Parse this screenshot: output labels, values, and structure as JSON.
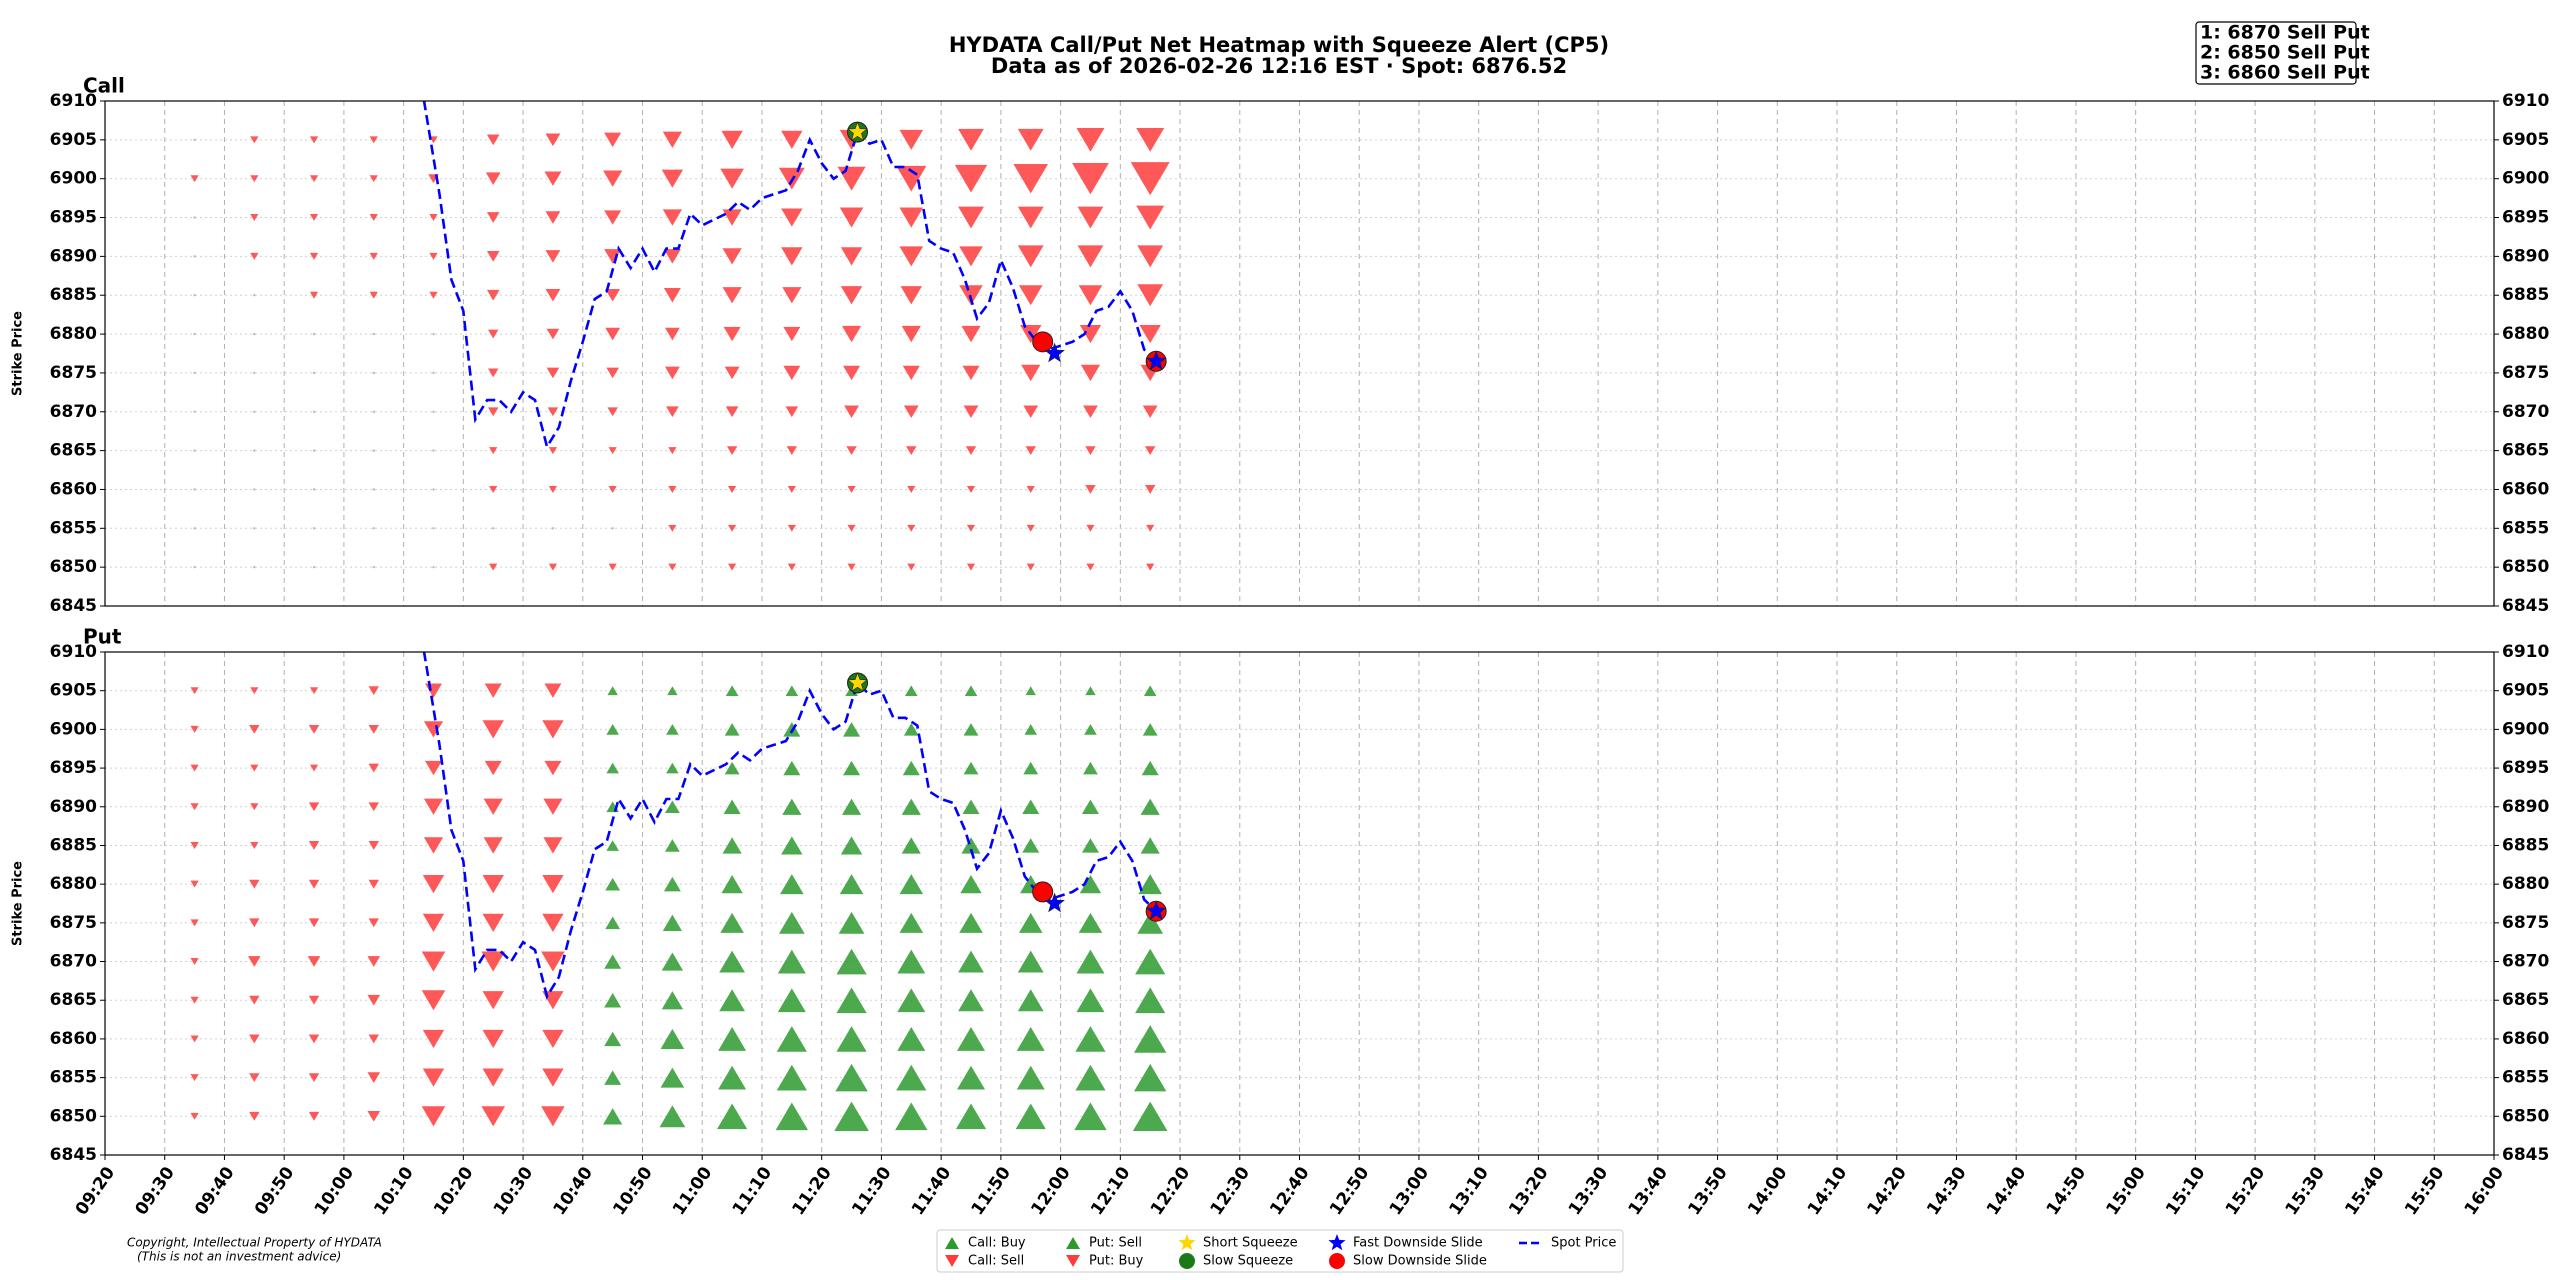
{
  "title": "HYDATA Call/Put Net Heatmap with Squeeze Alert (CP5)",
  "subtitle": "Data as of 2026-02-26 12:16 EST · Spot: 6876.52",
  "top_signals": [
    "1: 6870 Sell Put",
    "2: 6850 Sell Put",
    "3: 6860 Sell Put"
  ],
  "copyright": [
    "Copyright, Intellectual Property of HYDATA",
    "(This is not an investment advice)"
  ],
  "legend": [
    {
      "label": "Call: Buy",
      "color": "#2e9a2e",
      "marker": "up"
    },
    {
      "label": "Call: Sell",
      "color": "#ff3b3b",
      "marker": "down"
    },
    {
      "label": "Put: Sell",
      "color": "#2e9a2e",
      "marker": "up"
    },
    {
      "label": "Put: Buy",
      "color": "#ff3b3b",
      "marker": "down"
    },
    {
      "label": "Short Squeeze",
      "color": "#ffd700",
      "marker": "star",
      "x": [
        "11:26"
      ],
      "values": [
        6906
      ]
    },
    {
      "label": "Slow Squeeze",
      "color": "#1a7a1a",
      "marker": "circle",
      "x": [
        "11:26"
      ],
      "values": [
        6906
      ]
    },
    {
      "label": "Fast Downside Slide",
      "color": "#0000ff",
      "marker": "star",
      "x": [
        "11:59",
        "12:16"
      ],
      "values": [
        6877.5,
        6876.5
      ]
    },
    {
      "label": "Slow Downside Slide",
      "color": "#ff0000",
      "marker": "circle",
      "x": [
        "11:57",
        "12:16"
      ],
      "values": [
        6879,
        6876.5
      ]
    },
    {
      "label": "Spot Price",
      "color": "#0000ff",
      "marker": "dash",
      "x": [
        "10:13",
        "10:16",
        "10:18",
        "10:20",
        "10:22",
        "10:24",
        "10:26",
        "10:28",
        "10:30",
        "10:32",
        "10:34",
        "10:36",
        "10:38",
        "10:40",
        "10:42",
        "10:44",
        "10:46",
        "10:48",
        "10:50",
        "10:52",
        "10:54",
        "10:56",
        "10:58",
        "11:00",
        "11:04",
        "11:06",
        "11:08",
        "11:10",
        "11:14",
        "11:16",
        "11:18",
        "11:20",
        "11:22",
        "11:24",
        "11:26",
        "11:28",
        "11:30",
        "11:32",
        "11:34",
        "11:36",
        "11:38",
        "11:40",
        "11:42",
        "11:44",
        "11:46",
        "11:48",
        "11:50",
        "11:52",
        "11:54",
        "11:56",
        "11:58",
        "12:00",
        "12:02",
        "12:04",
        "12:06",
        "12:08",
        "12:10",
        "12:12",
        "12:14",
        "12:16"
      ],
      "values": [
        6912,
        6898,
        6887,
        6883,
        6869,
        6871.5,
        6871.5,
        6870,
        6872.5,
        6871.5,
        6865.5,
        6868,
        6874,
        6879,
        6884.5,
        6885.5,
        6891,
        6888.5,
        6891,
        6888,
        6891,
        6891,
        6895.5,
        6894,
        6895.5,
        6897,
        6896,
        6897.5,
        6898.5,
        6901,
        6905,
        6902,
        6900,
        6901,
        6906,
        6904.5,
        6905,
        6901.5,
        6901.5,
        6900.5,
        6892,
        6891,
        6890.5,
        6887,
        6882,
        6884,
        6889.5,
        6886,
        6881,
        6879,
        6878,
        6878.5,
        6879,
        6880,
        6883,
        6883.5,
        6885.5,
        6883,
        6878,
        6876.5
      ]
    }
  ],
  "chart_data": [
    {
      "type": "heatmap",
      "title": "Call",
      "ylabel": "Strike Price",
      "colors": {
        "positive": "#2e9a2e",
        "negative": "#ff3b3b"
      },
      "xlim": [
        "09:20",
        "16:00"
      ],
      "ylim": [
        6845,
        6910
      ],
      "yticks": [
        6845,
        6850,
        6855,
        6860,
        6865,
        6870,
        6875,
        6880,
        6885,
        6890,
        6895,
        6900,
        6905,
        6910
      ],
      "grid": true,
      "x": [
        "09:35",
        "09:45",
        "09:55",
        "10:05",
        "10:15",
        "10:25",
        "10:35",
        "10:45",
        "10:55",
        "11:05",
        "11:15",
        "11:25",
        "11:35",
        "11:45",
        "11:55",
        "12:05",
        "12:15"
      ],
      "strikes": [
        6850,
        6855,
        6860,
        6865,
        6870,
        6875,
        6880,
        6885,
        6890,
        6895,
        6900,
        6905
      ],
      "values": [
        [
          0,
          0,
          0,
          0,
          0,
          -1,
          -1,
          -1,
          -1,
          -1,
          -1,
          -1,
          -1,
          -1,
          -1,
          -1,
          -1
        ],
        [
          0,
          0,
          0,
          0,
          0,
          0,
          0,
          0,
          -1,
          -1,
          -1,
          -1,
          -1,
          -1,
          -1,
          -1,
          -1
        ],
        [
          0,
          0,
          0,
          0,
          0,
          -1,
          -1,
          -1,
          -1,
          -1,
          -1,
          -1,
          -1,
          -1,
          -1,
          -2,
          -2
        ],
        [
          0,
          0,
          0,
          0,
          0,
          -1,
          -1,
          -1,
          -1,
          -2,
          -2,
          -2,
          -2,
          -2,
          -2,
          -2,
          -2
        ],
        [
          0,
          0,
          0,
          0,
          0,
          -2,
          -2,
          -2,
          -3,
          -3,
          -3,
          -4,
          -4,
          -4,
          -4,
          -4,
          -4
        ],
        [
          0,
          0,
          0,
          0,
          0,
          -2,
          -3,
          -3,
          -4,
          -4,
          -5,
          -5,
          -5,
          -5,
          -6,
          -6,
          -6
        ],
        [
          0,
          0,
          0,
          0,
          0,
          -2,
          -3,
          -4,
          -4,
          -5,
          -5,
          -6,
          -6,
          -6,
          -7,
          -7,
          -7
        ],
        [
          0,
          0,
          -1,
          -1,
          -1,
          -3,
          -4,
          -4,
          -5,
          -6,
          -6,
          -7,
          -7,
          -8,
          -8,
          -8,
          -9
        ],
        [
          0,
          -1,
          -1,
          -1,
          -1,
          -3,
          -4,
          -5,
          -5,
          -6,
          -7,
          -7,
          -8,
          -8,
          -9,
          -9,
          -9
        ],
        [
          0,
          -1,
          -1,
          -1,
          -1,
          -3,
          -4,
          -5,
          -6,
          -6,
          -7,
          -8,
          -8,
          -9,
          -9,
          -9,
          -10
        ],
        [
          -1,
          -1,
          -1,
          -1,
          -2,
          -4,
          -5,
          -6,
          -7,
          -8,
          -9,
          -10,
          -11,
          -12,
          -13,
          -14,
          -15
        ],
        [
          0,
          -1,
          -1,
          -1,
          -1,
          -3,
          -4,
          -5,
          -6,
          -7,
          -7,
          -8,
          -8,
          -9,
          -9,
          -10,
          -10
        ]
      ]
    },
    {
      "type": "heatmap",
      "title": "Put",
      "ylabel": "Strike Price",
      "colors": {
        "positive": "#2e9a2e",
        "negative": "#ff3b3b"
      },
      "xlim": [
        "09:20",
        "16:00"
      ],
      "xticks": [
        "09:20",
        "09:30",
        "09:40",
        "09:50",
        "10:00",
        "10:10",
        "10:20",
        "10:30",
        "10:40",
        "10:50",
        "11:00",
        "11:10",
        "11:20",
        "11:30",
        "11:40",
        "11:50",
        "12:00",
        "12:10",
        "12:20",
        "12:30",
        "12:40",
        "12:50",
        "13:00",
        "13:10",
        "13:20",
        "13:30",
        "13:40",
        "13:50",
        "14:00",
        "14:10",
        "14:20",
        "14:30",
        "14:40",
        "14:50",
        "15:00",
        "15:10",
        "15:20",
        "15:30",
        "15:40",
        "15:50",
        "16:00"
      ],
      "ylim": [
        6845,
        6910
      ],
      "yticks": [
        6845,
        6850,
        6855,
        6860,
        6865,
        6870,
        6875,
        6880,
        6885,
        6890,
        6895,
        6900,
        6905,
        6910
      ],
      "grid": true,
      "x": [
        "09:35",
        "09:45",
        "09:55",
        "10:05",
        "10:15",
        "10:25",
        "10:35",
        "10:45",
        "10:55",
        "11:05",
        "11:15",
        "11:25",
        "11:35",
        "11:45",
        "11:55",
        "12:05",
        "12:15"
      ],
      "strikes": [
        6850,
        6855,
        6860,
        6865,
        6870,
        6875,
        6880,
        6885,
        6890,
        6895,
        6900,
        6905
      ],
      "values": [
        [
          -1,
          -2,
          -2,
          -3,
          -8,
          -8,
          -8,
          6,
          9,
          11,
          12,
          13,
          12,
          11,
          11,
          12,
          13
        ],
        [
          -1,
          -2,
          -2,
          -3,
          -7,
          -7,
          -7,
          5,
          8,
          10,
          11,
          12,
          11,
          10,
          10,
          11,
          12
        ],
        [
          -1,
          -2,
          -2,
          -2,
          -7,
          -7,
          -7,
          5,
          8,
          10,
          11,
          11,
          10,
          10,
          10,
          11,
          12
        ],
        [
          -1,
          -2,
          -2,
          -3,
          -8,
          -7,
          -7,
          5,
          7,
          9,
          10,
          11,
          10,
          9,
          9,
          10,
          11
        ],
        [
          -1,
          -3,
          -3,
          -3,
          -8,
          -8,
          -8,
          5,
          7,
          9,
          10,
          11,
          10,
          9,
          9,
          10,
          11
        ],
        [
          -1,
          -2,
          -2,
          -2,
          -7,
          -7,
          -7,
          4,
          6,
          8,
          9,
          9,
          8,
          8,
          8,
          8,
          9
        ],
        [
          -1,
          -2,
          -2,
          -2,
          -7,
          -7,
          -7,
          4,
          5,
          7,
          8,
          8,
          8,
          7,
          7,
          7,
          8
        ],
        [
          -1,
          -1,
          -2,
          -2,
          -6,
          -6,
          -6,
          3,
          4,
          6,
          7,
          7,
          6,
          6,
          5,
          5,
          6
        ],
        [
          -1,
          -1,
          -2,
          -2,
          -6,
          -6,
          -6,
          3,
          4,
          5,
          6,
          6,
          6,
          5,
          5,
          5,
          6
        ],
        [
          -1,
          -1,
          -1,
          -2,
          -5,
          -5,
          -5,
          3,
          3,
          4,
          5,
          5,
          5,
          4,
          4,
          4,
          5
        ],
        [
          -1,
          -2,
          -2,
          -2,
          -6,
          -7,
          -7,
          3,
          3,
          4,
          5,
          5,
          4,
          4,
          3,
          3,
          4
        ],
        [
          -1,
          -1,
          -1,
          -2,
          -5,
          -5,
          -5,
          2,
          2,
          3,
          3,
          3,
          3,
          3,
          2,
          2,
          3
        ]
      ]
    }
  ]
}
